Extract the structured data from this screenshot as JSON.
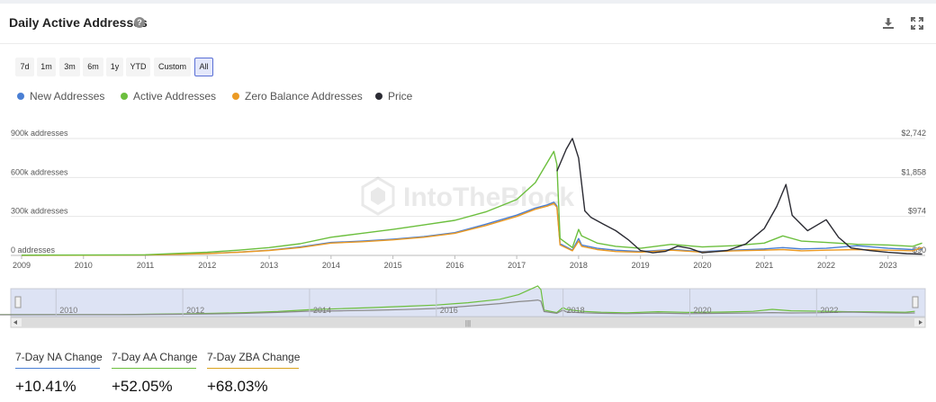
{
  "header": {
    "title": "Daily Active Addresses",
    "help_icon": "question-circle-icon",
    "download_icon": "download-icon",
    "fullscreen_icon": "expand-icon"
  },
  "ranges": [
    "7d",
    "1m",
    "3m",
    "6m",
    "1y",
    "YTD",
    "Custom",
    "All"
  ],
  "selected_range": "All",
  "legend": [
    {
      "label": "New Addresses",
      "color": "#4a7fd4"
    },
    {
      "label": "Active Addresses",
      "color": "#6cbf3e"
    },
    {
      "label": "Zero Balance Addresses",
      "color": "#eb9a24"
    },
    {
      "label": "Price",
      "color": "#2b2b33"
    }
  ],
  "watermark": "IntoTheBlock",
  "stats": [
    {
      "label": "7-Day NA Change",
      "value": "+10.41%",
      "color": "#4a7fd4"
    },
    {
      "label": "7-Day AA Change",
      "value": "+52.05%",
      "color": "#6cbf3e"
    },
    {
      "label": "7-Day ZBA Change",
      "value": "+68.03%",
      "color": "#d9a21c"
    }
  ],
  "chart_data": {
    "type": "line",
    "x_ticks": [
      "2009",
      "2010",
      "2011",
      "2012",
      "2013",
      "2014",
      "2015",
      "2016",
      "2017",
      "2018",
      "2019",
      "2020",
      "2021",
      "2022",
      "2023"
    ],
    "xlim": [
      2009,
      2023.6
    ],
    "y_left_ticks": [
      "0 addresses",
      "300k addresses",
      "600k addresses",
      "900k addresses"
    ],
    "ylim_left": [
      0,
      900000
    ],
    "y_right_ticks": [
      "$90",
      "$974",
      "$1,858",
      "$2,742"
    ],
    "ylim_right": [
      90,
      2742
    ],
    "grid": true,
    "legend_position": "top-left",
    "navigator_ticks": [
      "2010",
      "2012",
      "2014",
      "2016",
      "2018",
      "2020",
      "2022"
    ],
    "series": [
      {
        "name": "Active Addresses",
        "axis": "left",
        "color": "#6cbf3e",
        "points": [
          [
            2009,
            2000
          ],
          [
            2010,
            3000
          ],
          [
            2011,
            5000
          ],
          [
            2011.5,
            15000
          ],
          [
            2012,
            25000
          ],
          [
            2012.5,
            40000
          ],
          [
            2013,
            60000
          ],
          [
            2013.5,
            90000
          ],
          [
            2014,
            140000
          ],
          [
            2014.5,
            170000
          ],
          [
            2015,
            200000
          ],
          [
            2015.5,
            235000
          ],
          [
            2016,
            270000
          ],
          [
            2016.5,
            335000
          ],
          [
            2017,
            430000
          ],
          [
            2017.3,
            560000
          ],
          [
            2017.5,
            720000
          ],
          [
            2017.6,
            800000
          ],
          [
            2017.65,
            700000
          ],
          [
            2017.7,
            130000
          ],
          [
            2017.9,
            60000
          ],
          [
            2018,
            200000
          ],
          [
            2018.05,
            150000
          ],
          [
            2018.3,
            95000
          ],
          [
            2018.6,
            70000
          ],
          [
            2019,
            55000
          ],
          [
            2019.5,
            85000
          ],
          [
            2020,
            65000
          ],
          [
            2020.5,
            75000
          ],
          [
            2021,
            95000
          ],
          [
            2021.3,
            150000
          ],
          [
            2021.6,
            110000
          ],
          [
            2022,
            100000
          ],
          [
            2022.5,
            85000
          ],
          [
            2023,
            80000
          ],
          [
            2023.4,
            70000
          ],
          [
            2023.55,
            95000
          ]
        ]
      },
      {
        "name": "New Addresses",
        "axis": "left",
        "color": "#4a7fd4",
        "points": [
          [
            2009,
            1000
          ],
          [
            2010,
            2000
          ],
          [
            2011,
            3000
          ],
          [
            2011.5,
            9000
          ],
          [
            2012,
            15000
          ],
          [
            2012.5,
            25000
          ],
          [
            2013,
            40000
          ],
          [
            2013.5,
            65000
          ],
          [
            2014,
            100000
          ],
          [
            2014.5,
            110000
          ],
          [
            2015,
            125000
          ],
          [
            2015.5,
            145000
          ],
          [
            2016,
            175000
          ],
          [
            2016.5,
            240000
          ],
          [
            2017,
            310000
          ],
          [
            2017.3,
            365000
          ],
          [
            2017.5,
            390000
          ],
          [
            2017.6,
            410000
          ],
          [
            2017.65,
            380000
          ],
          [
            2017.7,
            90000
          ],
          [
            2017.9,
            40000
          ],
          [
            2018,
            130000
          ],
          [
            2018.05,
            80000
          ],
          [
            2018.3,
            55000
          ],
          [
            2018.6,
            40000
          ],
          [
            2019,
            30000
          ],
          [
            2019.5,
            45000
          ],
          [
            2020,
            30000
          ],
          [
            2020.5,
            40000
          ],
          [
            2021,
            50000
          ],
          [
            2021.3,
            60000
          ],
          [
            2021.6,
            50000
          ],
          [
            2022,
            55000
          ],
          [
            2022.5,
            75000
          ],
          [
            2023,
            55000
          ],
          [
            2023.4,
            45000
          ],
          [
            2023.55,
            50000
          ]
        ]
      },
      {
        "name": "Zero Balance Addresses",
        "axis": "left",
        "color": "#eb9a24",
        "points": [
          [
            2009,
            500
          ],
          [
            2010,
            1500
          ],
          [
            2011,
            2500
          ],
          [
            2011.5,
            8000
          ],
          [
            2012,
            14000
          ],
          [
            2012.5,
            24000
          ],
          [
            2013,
            38000
          ],
          [
            2013.5,
            60000
          ],
          [
            2014,
            95000
          ],
          [
            2014.5,
            105000
          ],
          [
            2015,
            120000
          ],
          [
            2015.5,
            140000
          ],
          [
            2016,
            170000
          ],
          [
            2016.5,
            230000
          ],
          [
            2017,
            300000
          ],
          [
            2017.3,
            355000
          ],
          [
            2017.5,
            380000
          ],
          [
            2017.6,
            400000
          ],
          [
            2017.65,
            370000
          ],
          [
            2017.7,
            80000
          ],
          [
            2017.9,
            35000
          ],
          [
            2018,
            110000
          ],
          [
            2018.05,
            70000
          ],
          [
            2018.3,
            45000
          ],
          [
            2018.6,
            30000
          ],
          [
            2019,
            25000
          ],
          [
            2019.5,
            40000
          ],
          [
            2020,
            25000
          ],
          [
            2020.5,
            35000
          ],
          [
            2021,
            40000
          ],
          [
            2021.3,
            45000
          ],
          [
            2021.6,
            35000
          ],
          [
            2022,
            40000
          ],
          [
            2022.5,
            45000
          ],
          [
            2023,
            40000
          ],
          [
            2023.4,
            35000
          ],
          [
            2023.55,
            60000
          ]
        ]
      },
      {
        "name": "Price",
        "axis": "right",
        "color": "#2b2b33",
        "points": [
          [
            2017.65,
            2000
          ],
          [
            2017.8,
            2500
          ],
          [
            2017.9,
            2742
          ],
          [
            2018,
            2300
          ],
          [
            2018.1,
            1100
          ],
          [
            2018.2,
            950
          ],
          [
            2018.4,
            800
          ],
          [
            2018.6,
            650
          ],
          [
            2018.8,
            450
          ],
          [
            2019,
            200
          ],
          [
            2019.2,
            150
          ],
          [
            2019.4,
            180
          ],
          [
            2019.6,
            300
          ],
          [
            2019.8,
            250
          ],
          [
            2020,
            150
          ],
          [
            2020.4,
            200
          ],
          [
            2020.7,
            350
          ],
          [
            2021,
            700
          ],
          [
            2021.2,
            1200
          ],
          [
            2021.35,
            1700
          ],
          [
            2021.45,
            1000
          ],
          [
            2021.7,
            650
          ],
          [
            2022,
            900
          ],
          [
            2022.2,
            500
          ],
          [
            2022.4,
            260
          ],
          [
            2022.7,
            200
          ],
          [
            2023,
            160
          ],
          [
            2023.3,
            130
          ],
          [
            2023.55,
            120
          ]
        ]
      }
    ]
  }
}
